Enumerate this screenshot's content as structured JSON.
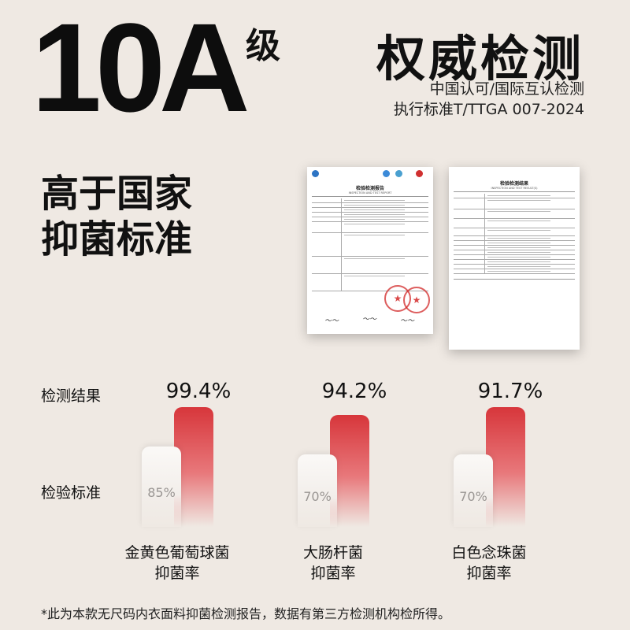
{
  "hero": {
    "grade": "10A",
    "grade_suffix": "级",
    "title": "权威检测",
    "subtitle1": "中国认可/国际互认检测",
    "subtitle2": "执行标准T/TTGA 007-2024"
  },
  "claim": {
    "line1": "高于国家",
    "line2": "抑菌标准"
  },
  "reports": {
    "doc1_title": "检验检测报告",
    "doc1_subtitle": "INSPECTION AND TEST REPORT",
    "doc2_title": "检验检测结果",
    "doc2_subtitle": "INSPECTION AND TEST RESULT(S)"
  },
  "labels": {
    "result": "检测结果",
    "standard": "检验标准"
  },
  "results": [
    {
      "value": "99.4%",
      "standard": "85%",
      "name_line1": "金黄色葡萄球菌",
      "name_line2": "抑菌率"
    },
    {
      "value": "94.2%",
      "standard": "70%",
      "name_line1": "大肠杆菌",
      "name_line2": "抑菌率"
    },
    {
      "value": "91.7%",
      "standard": "70%",
      "name_line1": "白色念珠菌",
      "name_line2": "抑菌率"
    }
  ],
  "colors": {
    "accent_red": "#d7363b",
    "background": "#efe9e3"
  },
  "footnote": "*此为本款无尺码内衣面料抑菌检测报告，数据有第三方检测机构检所得。"
}
